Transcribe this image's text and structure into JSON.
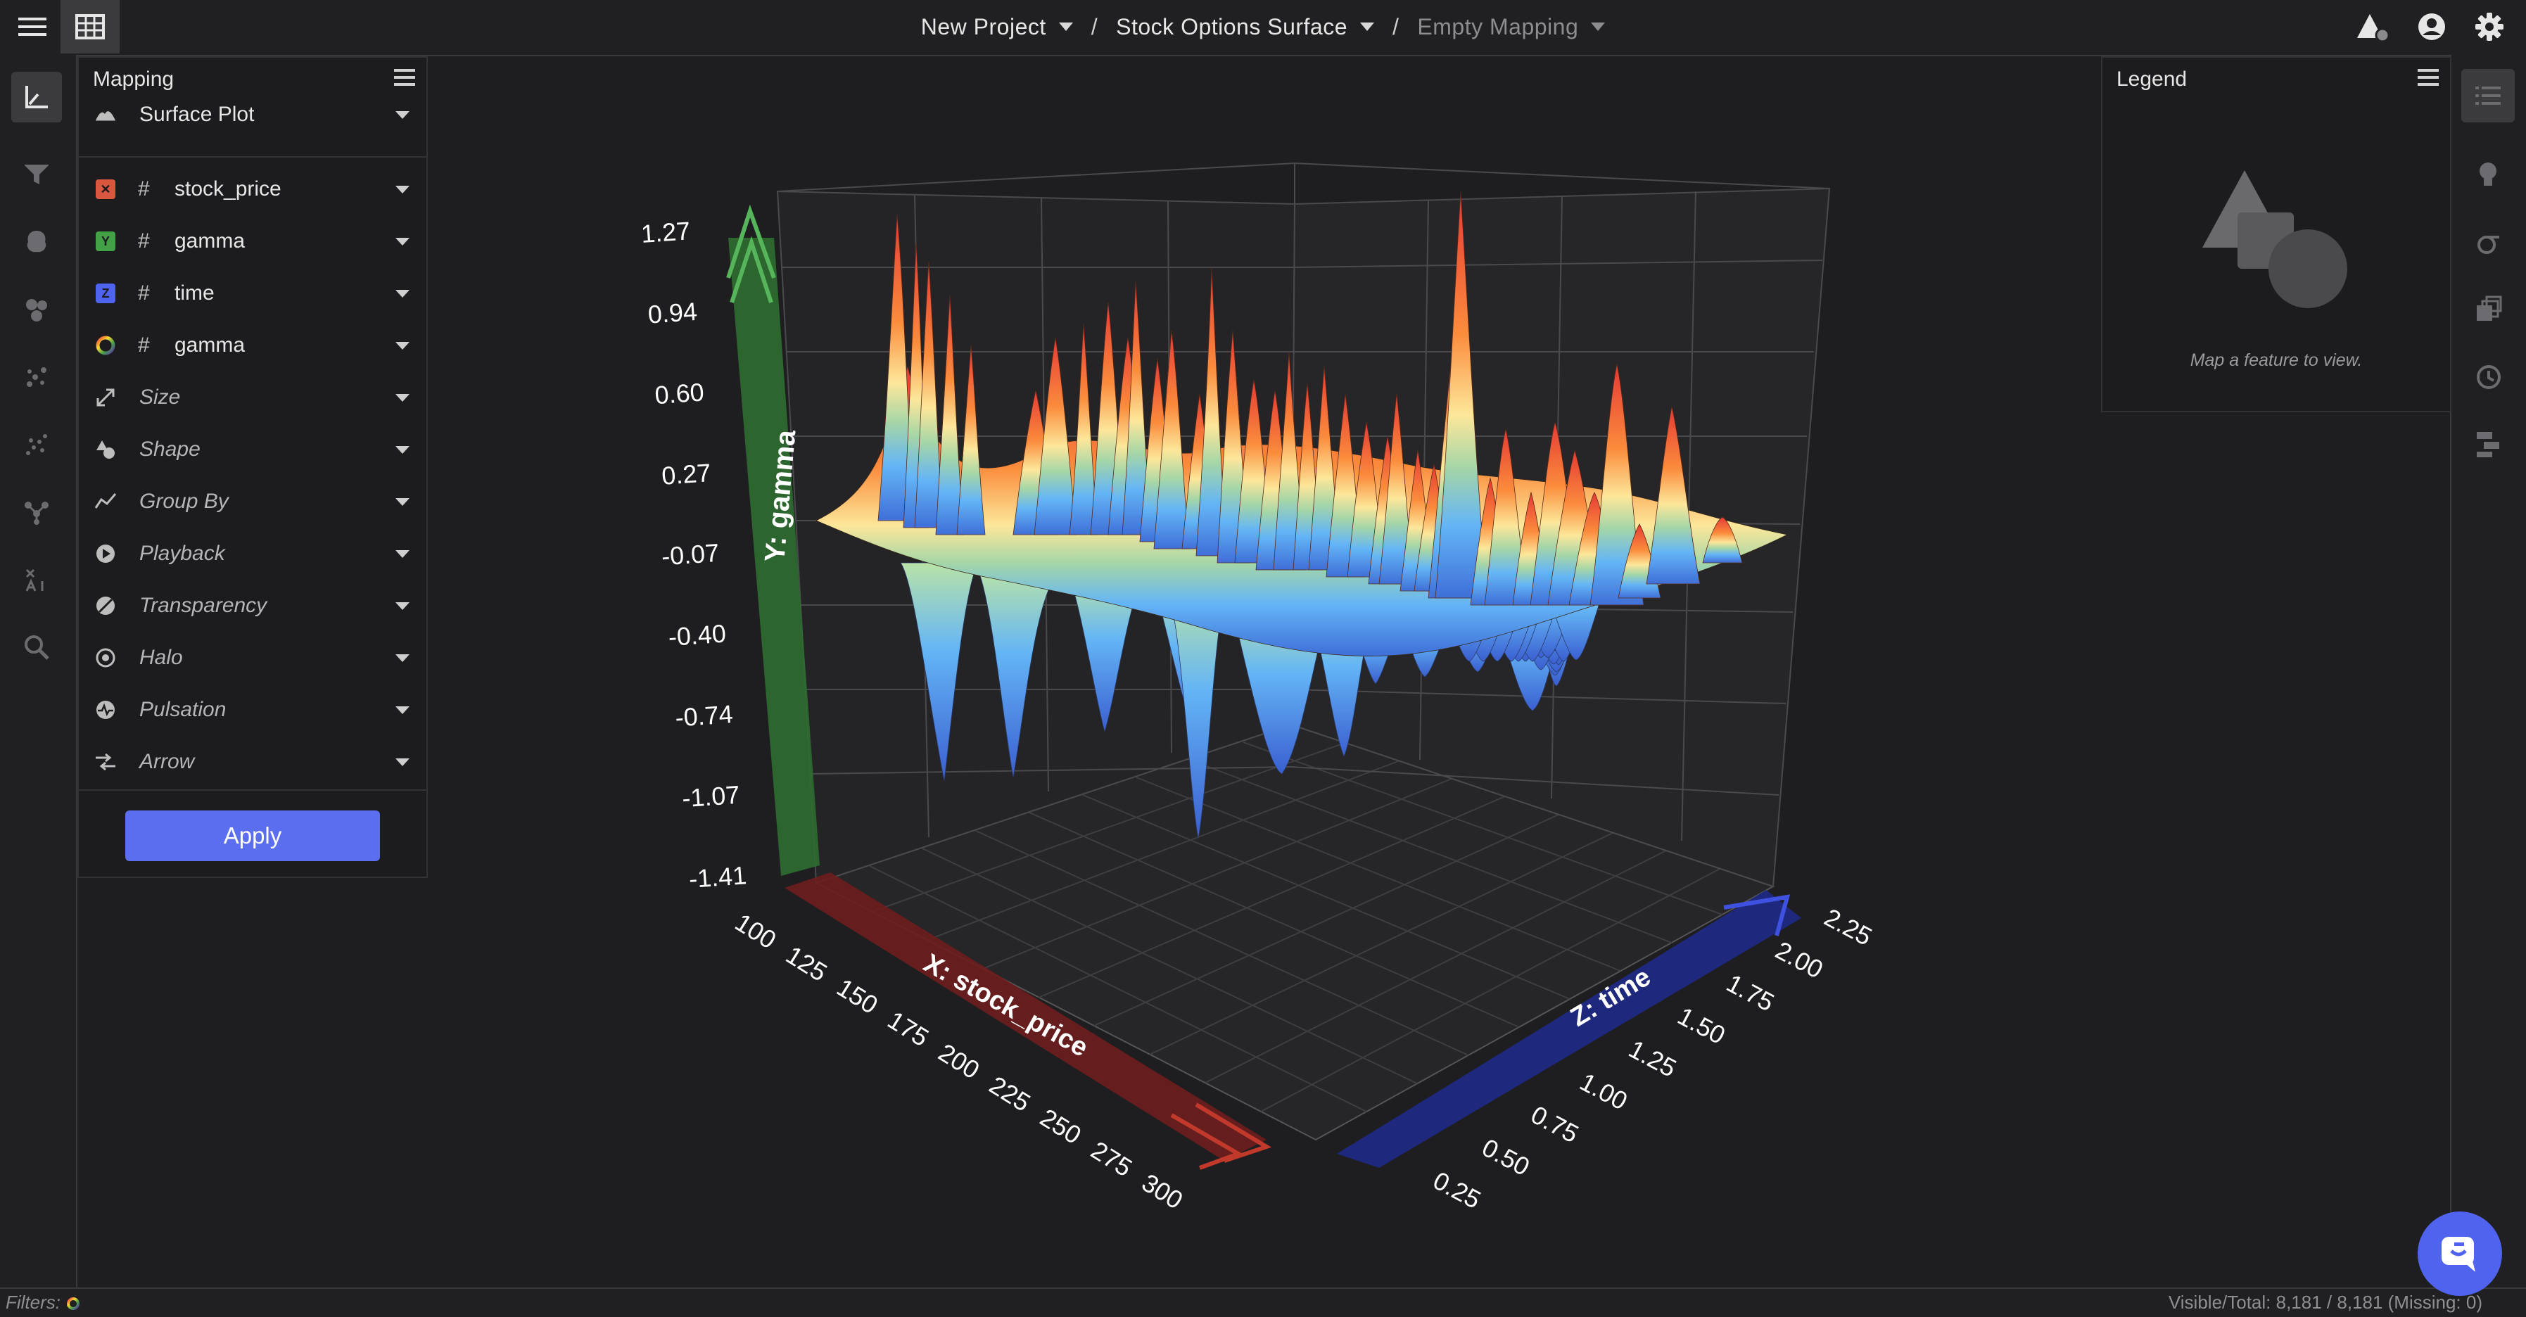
{
  "breadcrumbs": [
    {
      "label": "New Project",
      "muted": false
    },
    {
      "label": "Stock Options Surface",
      "muted": false
    },
    {
      "label": "Empty Mapping",
      "muted": true
    }
  ],
  "breadcrumb_separator": "/",
  "mapping": {
    "title": "Mapping",
    "plot_type": "Surface Plot",
    "channels": [
      {
        "badge": "X",
        "badge_color": "#d9573f",
        "name": "stock_price"
      },
      {
        "badge": "Y",
        "badge_color": "#43a047",
        "name": "gamma"
      },
      {
        "badge": "Z",
        "badge_color": "#4f63ef",
        "name": "time"
      },
      {
        "badge": "color",
        "badge_color": "rainbow",
        "name": "gamma"
      }
    ],
    "options": [
      "Size",
      "Shape",
      "Group By",
      "Playback",
      "Transparency",
      "Halo",
      "Pulsation",
      "Arrow"
    ],
    "apply_label": "Apply"
  },
  "legend": {
    "title": "Legend",
    "message": "Map a feature to view."
  },
  "status": {
    "filters_label": "Filters:",
    "counts": "Visible/Total: 8,181 / 8,181 (Missing: 0)"
  },
  "chart_data": {
    "type": "surface",
    "axes": {
      "x": {
        "label": "X: stock_price",
        "ticks": [
          "100",
          "125",
          "150",
          "175",
          "200",
          "225",
          "250",
          "275",
          "300"
        ],
        "range": [
          100,
          300
        ],
        "color": "#c62828"
      },
      "y": {
        "label": "Y: gamma",
        "ticks": [
          "1.27",
          "0.94",
          "0.60",
          "0.27",
          "-0.07",
          "-0.40",
          "-0.74",
          "-1.07",
          "-1.41"
        ],
        "range": [
          -1.41,
          1.27
        ],
        "color": "#2e7d32"
      },
      "z": {
        "label": "Z: time",
        "ticks": [
          "2.25",
          "2.00",
          "1.75",
          "1.50",
          "1.25",
          "1.00",
          "0.75",
          "0.50",
          "0.25"
        ],
        "range": [
          0.25,
          2.25
        ],
        "color": "#1a237e"
      }
    },
    "colorscale": "red-yellow-green-blue (by gamma)",
    "grid": true
  }
}
